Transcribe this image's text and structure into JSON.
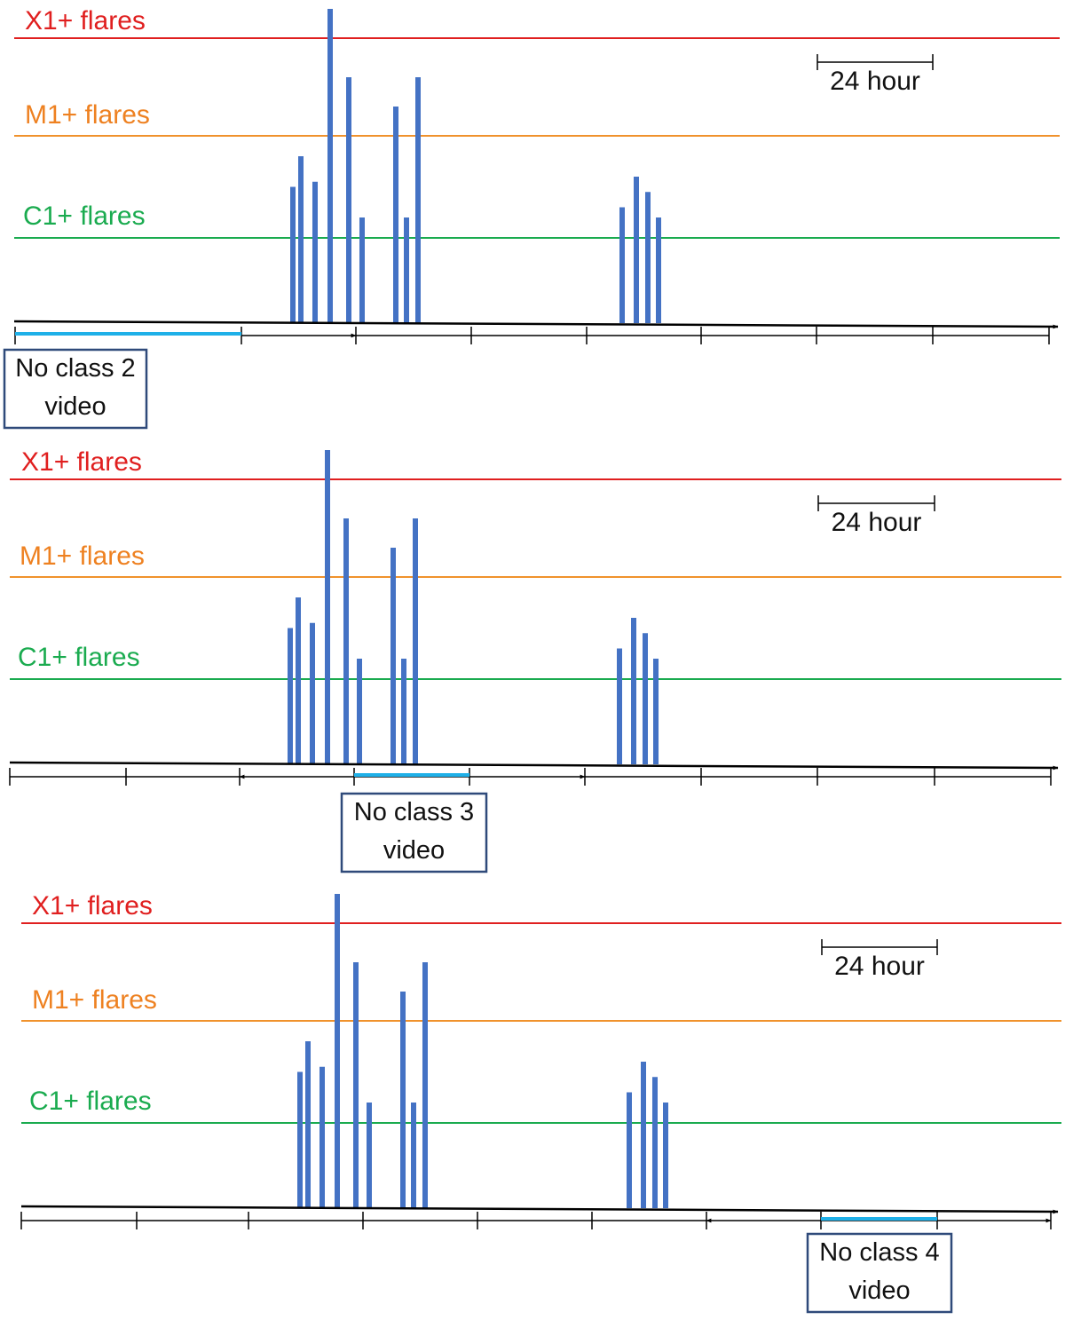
{
  "colors": {
    "x_line": "#e01f1f",
    "m_line": "#f0922c",
    "c_line": "#1aab4f",
    "x_text": "#e01f1f",
    "m_text": "#ee8121",
    "c_text": "#1aab4f",
    "bar": "#4472c4",
    "axis": "#000000",
    "highlight": "#1fb0e8",
    "box_border": "#2f4a7a",
    "text": "#111111"
  },
  "flare_levels": [
    {
      "key": "x",
      "label": "X1+ flares"
    },
    {
      "key": "m",
      "label": "M1+ flares"
    },
    {
      "key": "c",
      "label": "C1+ flares"
    }
  ],
  "scale_bar_label": "24 hour",
  "flare_events": {
    "level_scale": [
      "none",
      "C1",
      "M1",
      "X1"
    ],
    "magnitudes": [
      1.5,
      1.8,
      1.55,
      3.3,
      2.6,
      1.2,
      2.3,
      1.2,
      2.6,
      1.3,
      1.6,
      1.45,
      1.2
    ]
  },
  "panels": [
    {
      "id": "panel-1",
      "box_line1": "No class 2",
      "box_line2": "video",
      "no_flare_window_index": 0
    },
    {
      "id": "panel-2",
      "box_line1": "No class 3",
      "box_line2": "video",
      "no_flare_window_index": 3
    },
    {
      "id": "panel-3",
      "box_line1": "No class 4",
      "box_line2": "video",
      "no_flare_window_index": 7
    }
  ]
}
